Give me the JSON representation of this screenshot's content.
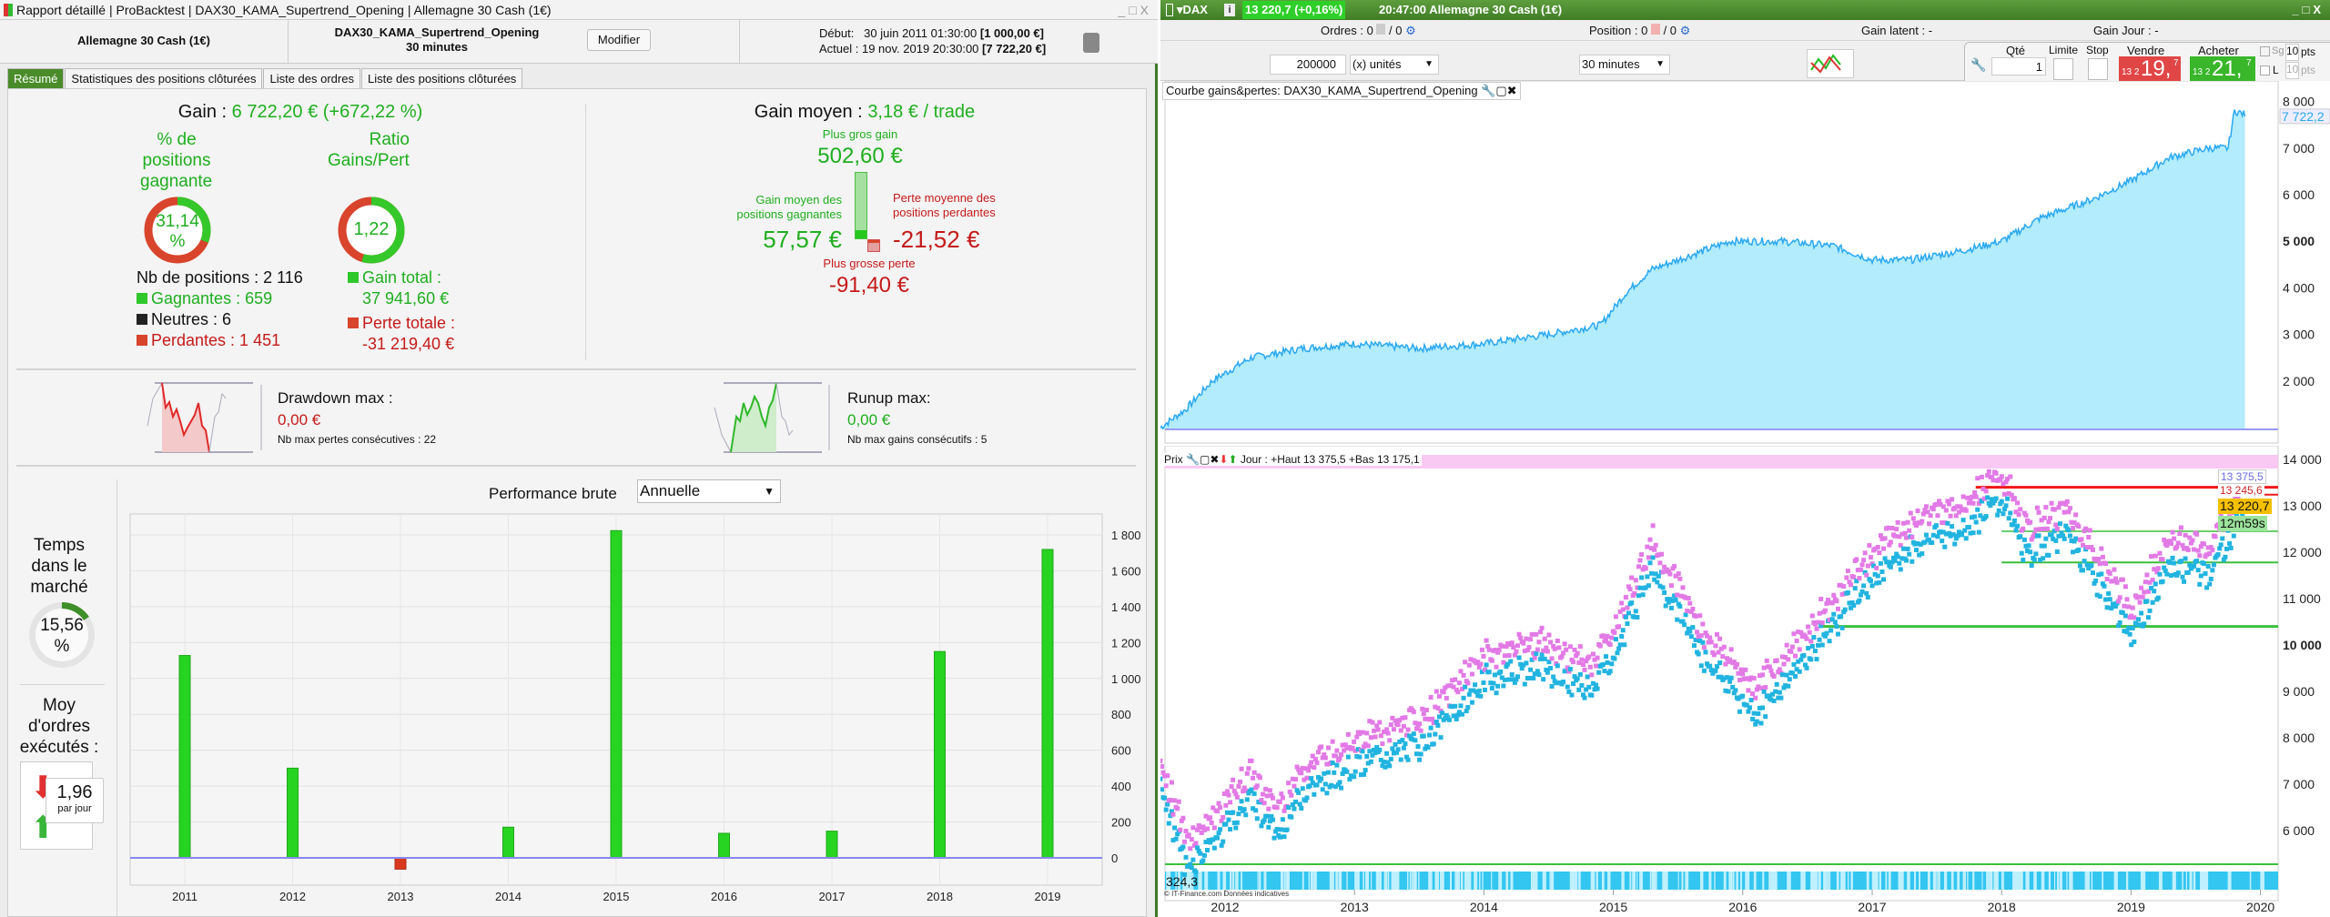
{
  "left_window": {
    "title": "Rapport détaillé | ProBacktest | DAX30_KAMA_Supertrend_Opening | Allemagne 30 Cash (1€)",
    "window_controls": [
      "_",
      "□",
      "X"
    ],
    "instrument": "Allemagne 30 Cash (1€)",
    "strategy_name": "DAX30_KAMA_Supertrend_Opening",
    "timeframe": "30 minutes",
    "modify_button": "Modifier",
    "debut_label": "Début:",
    "debut_value": "30 juin 2011 01:30:00",
    "debut_capital": "[1 000,00 €]",
    "actuel_label": "Actuel :",
    "actuel_value": "19 nov. 2019 20:30:00",
    "actuel_capital": "[7 722,20 €]",
    "tabs": [
      "Résumé",
      "Statistiques des positions clôturées",
      "Liste des ordres",
      "Liste des positions clôturées"
    ],
    "summary": {
      "gain_label": "Gain :",
      "gain_value": "6 722,20 € (+672,22 %)",
      "pct_winning_title": [
        "% de",
        "positions",
        "gagnantes"
      ],
      "pct_winning_value": "31,14",
      "pct_sign": "%",
      "pct_winning_fraction": 0.3114,
      "ratio_title": [
        "Ratio",
        "Gains/Pertes"
      ],
      "ratio_value": "1,22",
      "nb_positions": "Nb de positions : 2 116",
      "gagnantes": "Gagnantes : 659",
      "neutres": "Neutres : 6",
      "perdantes": "Perdantes : 1 451",
      "gain_total_label": "Gain total :",
      "gain_total_value": "37 941,60 €",
      "perte_totale_label": "Perte totale :",
      "perte_totale_value": "-31 219,40 €",
      "gain_moyen_label": "Gain moyen :",
      "gain_moyen_value": "3,18 € / trade",
      "plus_gros_gain_label": "Plus gros gain",
      "plus_gros_gain_value": "502,60 €",
      "gain_moyen_gagnantes_label": [
        "Gain moyen des",
        "positions gagnantes"
      ],
      "gain_moyen_gagnantes_value": "57,57 €",
      "perte_moyenne_label": [
        "Perte moyenne des",
        "positions perdantes"
      ],
      "perte_moyenne_value": "-21,52 €",
      "plus_grosse_perte_label": "Plus grosse perte",
      "plus_grosse_perte_value": "-91,40 €",
      "drawdown_label": "Drawdown max :",
      "drawdown_value": "0,00 €",
      "drawdown_sub": "Nb max pertes consécutives : 22",
      "runup_label": "Runup max:",
      "runup_value": "0,00 €",
      "runup_sub": "Nb max gains consécutifs : 5",
      "temps_label": [
        "Temps",
        "dans le",
        "marché"
      ],
      "temps_value": "15,56",
      "temps_fraction": 0.1556,
      "moy_label": [
        "Moy",
        "d'ordres",
        "exécutés :"
      ],
      "moy_value": "1,96",
      "moy_unit": "par jour",
      "perf_label": "Performance brute",
      "perf_select": "Annuelle"
    },
    "colors": {
      "gain": "#1fae1f",
      "loss": "#c41a1a",
      "accent": "#4a8c2a"
    }
  },
  "right_window": {
    "symbol": "DAX",
    "price_badge": "13 220,7 (+0,16%)",
    "time": "20:47:00",
    "instrument": "Allemagne 30 Cash (1€)",
    "ordres": "Ordres : 0",
    "ordres_sep": "/ 0",
    "position": "Position : 0",
    "position_sep": "/ 0",
    "gain_latent": "Gain latent : -",
    "gain_jour": "Gain Jour : -",
    "quantity": "200000",
    "units": "(x) unités",
    "timeframe": "30 minutes",
    "qte_label": "Qté",
    "qte_value": "1",
    "limite_label": "Limite",
    "stop_label": "Stop",
    "vendre_label": "Vendre",
    "vendre_small": "13 2",
    "vendre_big": "19,",
    "vendre_sup": "7",
    "acheter_label": "Acheter",
    "acheter_small": "13 2",
    "acheter_big": "21,",
    "acheter_sup": "7",
    "sg_label": "Sg",
    "sg_pts": "10",
    "l_label": "L",
    "l_pts": "10",
    "pts": "pts",
    "equity_title": "Courbe gains&pertes: DAX30_KAMA_Supertrend_Opening",
    "equity_last": "7 722,2",
    "price_header": {
      "prix": "Prix",
      "info": "Jour : +Haut 13 375,5 +Bas 13 175,1"
    },
    "price_labels": {
      "l1": "13 375,5",
      "l2": "13 245,6",
      "current": "13 220,7",
      "countdown": "12m59s"
    },
    "volume_label": "324,3",
    "copyright": "© IT-Finance.com Données indicatives"
  },
  "chart_data": [
    {
      "type": "bar",
      "title": "Performance brute",
      "categories": [
        "2011",
        "2012",
        "2013",
        "2014",
        "2015",
        "2016",
        "2017",
        "2018",
        "2019"
      ],
      "values": [
        1128,
        500,
        -63,
        171,
        1824,
        137,
        149,
        1150,
        1719
      ],
      "ylim": [
        -150,
        1920
      ],
      "yticks": [
        0,
        200,
        400,
        600,
        800,
        1000,
        1200,
        1400,
        1600,
        1800
      ],
      "ytick_labels": [
        "0",
        "200",
        "400",
        "600",
        "800",
        "1 000",
        "1 200",
        "1 400",
        "1 600",
        "1 800"
      ]
    },
    {
      "type": "area",
      "title": "Courbe gains&pertes",
      "x": [
        2011.5,
        2011.7,
        2011.9,
        2012.2,
        2012.6,
        2013.0,
        2013.5,
        2014.0,
        2014.5,
        2014.9,
        2015.1,
        2015.3,
        2015.6,
        2015.9,
        2016.3,
        2016.7,
        2017.0,
        2017.3,
        2017.7,
        2018.0,
        2018.3,
        2018.7,
        2019.0,
        2019.3,
        2019.6,
        2019.75,
        2019.8,
        2019.88
      ],
      "y": [
        1000,
        1400,
        2000,
        2500,
        2700,
        2800,
        2700,
        2800,
        3000,
        3200,
        3900,
        4400,
        4700,
        5000,
        5000,
        4900,
        4600,
        4600,
        4800,
        5000,
        5500,
        5900,
        6300,
        6800,
        7000,
        7000,
        7800,
        7722
      ],
      "yticks": [
        "2 000",
        "3 000",
        "4 000",
        "5 000",
        "6 000",
        "7 000",
        "8 000"
      ],
      "ylim": [
        1000,
        8400
      ]
    },
    {
      "type": "scatter",
      "title": "DAX",
      "x": [
        2011.5,
        2011.7,
        2011.9,
        2012.2,
        2012.4,
        2012.6,
        2013.0,
        2013.4,
        2013.6,
        2014.0,
        2014.4,
        2014.8,
        2015.0,
        2015.3,
        2015.7,
        2016.1,
        2016.5,
        2016.9,
        2017.3,
        2017.7,
        2018.0,
        2018.2,
        2018.5,
        2018.9,
        2019.0,
        2019.3,
        2019.6,
        2019.88
      ],
      "y": [
        7300,
        5500,
        6000,
        7000,
        6200,
        7100,
        7700,
        8000,
        8300,
        9500,
        9800,
        9300,
        10000,
        12000,
        10000,
        8800,
        10000,
        11400,
        12400,
        12800,
        13400,
        12200,
        12700,
        11000,
        10500,
        12000,
        11800,
        13220
      ],
      "yticks": [
        "6 000",
        "7 000",
        "8 000",
        "9 000",
        "10 000",
        "11 000",
        "12 000",
        "13 000",
        "14 000"
      ],
      "xticks": [
        "2012",
        "2013",
        "2014",
        "2015",
        "2016",
        "2017",
        "2018",
        "2019",
        "2020"
      ],
      "ylim": [
        5300,
        14300
      ]
    }
  ]
}
